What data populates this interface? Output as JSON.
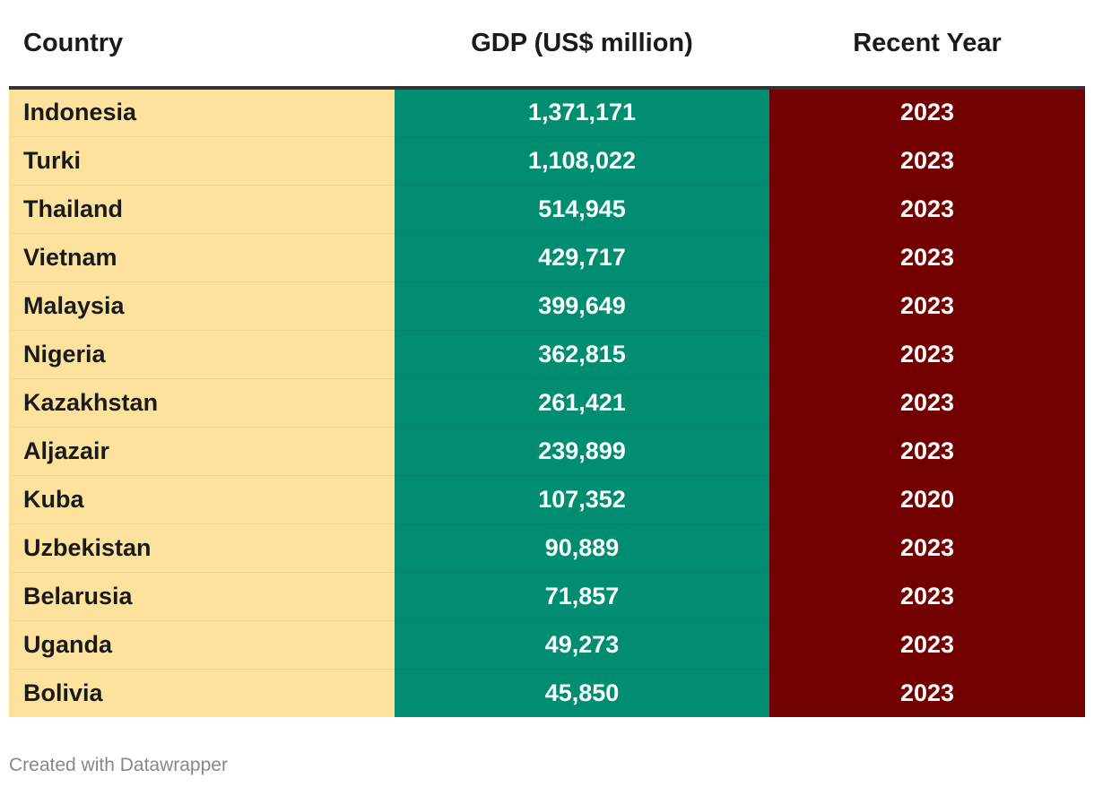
{
  "chart_data": {
    "type": "table",
    "columns": [
      "Country",
      "GDP (US$ million)",
      "Recent Year"
    ],
    "rows": [
      {
        "country": "Indonesia",
        "gdp": "1,371,171",
        "year": "2023"
      },
      {
        "country": "Turki",
        "gdp": "1,108,022",
        "year": "2023"
      },
      {
        "country": "Thailand",
        "gdp": "514,945",
        "year": "2023"
      },
      {
        "country": "Vietnam",
        "gdp": "429,717",
        "year": "2023"
      },
      {
        "country": "Malaysia",
        "gdp": "399,649",
        "year": "2023"
      },
      {
        "country": "Nigeria",
        "gdp": "362,815",
        "year": "2023"
      },
      {
        "country": "Kazakhstan",
        "gdp": "261,421",
        "year": "2023"
      },
      {
        "country": "Aljazair",
        "gdp": "239,899",
        "year": "2023"
      },
      {
        "country": "Kuba",
        "gdp": "107,352",
        "year": "2020"
      },
      {
        "country": "Uzbekistan",
        "gdp": "90,889",
        "year": "2023"
      },
      {
        "country": "Belarusia",
        "gdp": "71,857",
        "year": "2023"
      },
      {
        "country": "Uganda",
        "gdp": "49,273",
        "year": "2023"
      },
      {
        "country": "Bolivia",
        "gdp": "45,850",
        "year": "2023"
      }
    ],
    "column_colors": {
      "country": "#fde29e",
      "gdp": "#008d72",
      "year": "#720000"
    }
  },
  "footer": {
    "credit": "Created with Datawrapper"
  }
}
